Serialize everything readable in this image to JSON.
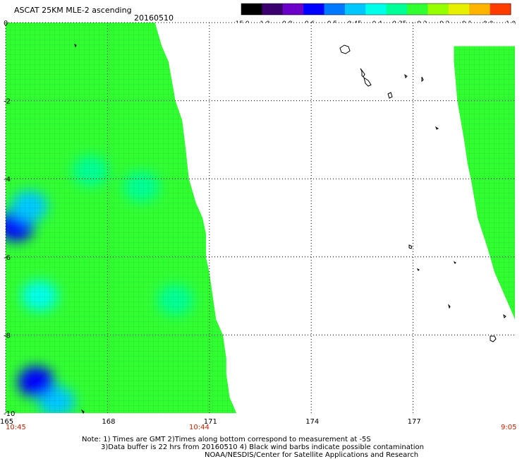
{
  "chart_data": {
    "type": "heatmap",
    "title": "ASCAT 25KM MLE-2 ascending",
    "date": "20160510",
    "x_ticks": [
      "165",
      "168",
      "171",
      "174",
      "177"
    ],
    "y_ticks": [
      "0",
      "-2",
      "-4",
      "-6",
      "-8",
      "-10"
    ],
    "xlim": [
      165,
      180
    ],
    "ylim": [
      -10,
      0
    ],
    "grid": true,
    "colorbar": {
      "labels": [
        "-15.0",
        "-1.0",
        "-0.8",
        "-0.6",
        "-0.5",
        "-0.45",
        "-0.4",
        "-0.35",
        "-0.3",
        "-0.2",
        "-0.1",
        "0.0",
        "1.0"
      ],
      "colors": [
        "#000000",
        "#3a006e",
        "#6a00c8",
        "#0000ff",
        "#0078ff",
        "#00c8ff",
        "#00ffe8",
        "#00ff96",
        "#32ff32",
        "#96ff00",
        "#e6f000",
        "#ffb400",
        "#ff3c00"
      ]
    },
    "time_labels": {
      "left": "10:45",
      "middle": "10:44",
      "right": "9:05"
    },
    "swaths": [
      {
        "name": "west",
        "lon_west": 165.0,
        "edge": [
          [
            0,
            169.4
          ],
          [
            -0.6,
            169.6
          ],
          [
            -1.0,
            169.8
          ],
          [
            -2.0,
            170.0
          ],
          [
            -2.5,
            170.2
          ],
          [
            -3.2,
            170.3
          ],
          [
            -4.0,
            170.4
          ],
          [
            -4.6,
            170.6
          ],
          [
            -5.0,
            170.8
          ],
          [
            -5.4,
            170.9
          ],
          [
            -6.0,
            170.9
          ],
          [
            -6.4,
            171.0
          ],
          [
            -7.0,
            171.1
          ],
          [
            -7.6,
            171.2
          ],
          [
            -8.0,
            171.4
          ],
          [
            -8.6,
            171.5
          ],
          [
            -9.0,
            171.5
          ],
          [
            -9.6,
            171.6
          ],
          [
            -10.0,
            171.8
          ]
        ]
      },
      {
        "name": "east",
        "lon_east": 180.0,
        "edge": [
          [
            -0.6,
            178.2
          ],
          [
            -1.0,
            178.2
          ],
          [
            -2.0,
            178.3
          ],
          [
            -3.0,
            178.5
          ],
          [
            -3.6,
            178.6
          ],
          [
            -4.0,
            178.7
          ],
          [
            -5.0,
            178.9
          ],
          [
            -5.8,
            179.2
          ],
          [
            -6.4,
            179.4
          ],
          [
            -7.6,
            180.0
          ]
        ]
      }
    ],
    "field_values": {
      "background": -0.3,
      "patches": [
        {
          "lon": 165.3,
          "lat": -5.2,
          "value": -0.6
        },
        {
          "lon": 165.7,
          "lat": -4.7,
          "value": -0.45
        },
        {
          "lon": 166.5,
          "lat": -9.7,
          "value": -0.45
        },
        {
          "lon": 165.9,
          "lat": -9.2,
          "value": -0.6
        },
        {
          "lon": 167.5,
          "lat": -3.8,
          "value": -0.35
        },
        {
          "lon": 169.0,
          "lat": -4.2,
          "value": -0.35
        },
        {
          "lon": 170.0,
          "lat": -7.1,
          "value": -0.35
        },
        {
          "lon": 166.0,
          "lat": -7.0,
          "value": -0.4
        }
      ]
    },
    "notes": [
      "Note: 1) Times are GMT 2)Times along bottom correspond to measurement at -5S",
      "3)Data buffer is 22 hrs from 20160510 4) Black wind barbs indicate possible contamination",
      "NOAA/NESDIS/Center for Satellite Applications and Research"
    ]
  }
}
